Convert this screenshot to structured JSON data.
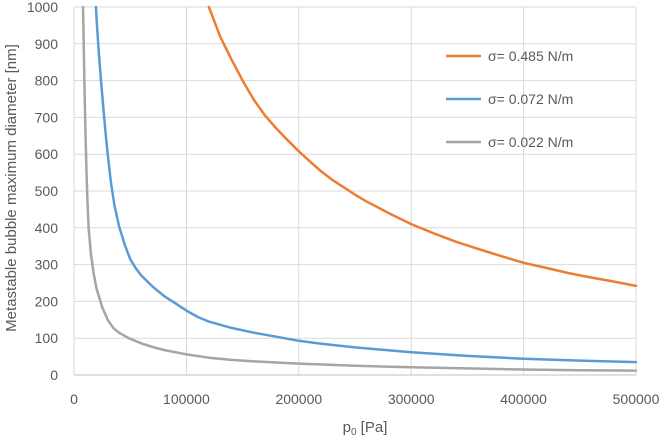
{
  "chart_data": {
    "type": "line",
    "title": "",
    "xlabel": "p₀ [Pa]",
    "ylabel": "Metastable bubble maximum diameter  [nm]",
    "xlim": [
      0,
      500000
    ],
    "ylim": [
      0,
      1000
    ],
    "xticks": [
      0,
      100000,
      200000,
      300000,
      400000,
      500000
    ],
    "yticks": [
      0,
      100,
      200,
      300,
      400,
      500,
      600,
      700,
      800,
      900,
      1000
    ],
    "grid": true,
    "legend_position": "top-right",
    "series": [
      {
        "name": "σ= 0.485 N/m",
        "color": "#ED7D31",
        "points": [
          [
            120000,
            1000
          ],
          [
            125000,
            960
          ],
          [
            130000,
            920
          ],
          [
            140000,
            858
          ],
          [
            150000,
            800
          ],
          [
            160000,
            748
          ],
          [
            170000,
            705
          ],
          [
            180000,
            670
          ],
          [
            190000,
            638
          ],
          [
            200000,
            608
          ],
          [
            210000,
            580
          ],
          [
            220000,
            553
          ],
          [
            230000,
            530
          ],
          [
            240000,
            510
          ],
          [
            250000,
            490
          ],
          [
            260000,
            472
          ],
          [
            270000,
            456
          ],
          [
            280000,
            440
          ],
          [
            290000,
            425
          ],
          [
            300000,
            410
          ],
          [
            320000,
            385
          ],
          [
            340000,
            362
          ],
          [
            360000,
            342
          ],
          [
            380000,
            323
          ],
          [
            400000,
            305
          ],
          [
            420000,
            291
          ],
          [
            440000,
            277
          ],
          [
            460000,
            265
          ],
          [
            480000,
            254
          ],
          [
            500000,
            242
          ]
        ]
      },
      {
        "name": "σ= 0.072 N/m",
        "color": "#5B9BD5",
        "points": [
          [
            19500,
            1000
          ],
          [
            20500,
            950
          ],
          [
            22000,
            880
          ],
          [
            24000,
            800
          ],
          [
            26000,
            730
          ],
          [
            28000,
            660
          ],
          [
            30000,
            600
          ],
          [
            33000,
            520
          ],
          [
            36000,
            460
          ],
          [
            40000,
            405
          ],
          [
            45000,
            355
          ],
          [
            50000,
            315
          ],
          [
            55000,
            290
          ],
          [
            60000,
            270
          ],
          [
            70000,
            240
          ],
          [
            80000,
            215
          ],
          [
            90000,
            195
          ],
          [
            100000,
            175
          ],
          [
            110000,
            158
          ],
          [
            120000,
            145
          ],
          [
            140000,
            128
          ],
          [
            160000,
            115
          ],
          [
            180000,
            104
          ],
          [
            200000,
            93
          ],
          [
            220000,
            85
          ],
          [
            250000,
            75
          ],
          [
            300000,
            62
          ],
          [
            350000,
            52
          ],
          [
            400000,
            44
          ],
          [
            450000,
            39
          ],
          [
            500000,
            35
          ]
        ]
      },
      {
        "name": "σ= 0.022 N/m",
        "color": "#A5A5A5",
        "points": [
          [
            8000,
            1000
          ],
          [
            8500,
            920
          ],
          [
            9000,
            840
          ],
          [
            9500,
            760
          ],
          [
            10000,
            690
          ],
          [
            11000,
            560
          ],
          [
            12000,
            470
          ],
          [
            13000,
            400
          ],
          [
            15000,
            330
          ],
          [
            17500,
            275
          ],
          [
            20000,
            235
          ],
          [
            25000,
            185
          ],
          [
            30000,
            150
          ],
          [
            35000,
            128
          ],
          [
            40000,
            115
          ],
          [
            50000,
            98
          ],
          [
            60000,
            86
          ],
          [
            70000,
            76
          ],
          [
            80000,
            68
          ],
          [
            90000,
            62
          ],
          [
            100000,
            56
          ],
          [
            120000,
            47
          ],
          [
            140000,
            41
          ],
          [
            160000,
            37
          ],
          [
            180000,
            34
          ],
          [
            200000,
            31
          ],
          [
            250000,
            25
          ],
          [
            300000,
            21
          ],
          [
            350000,
            18
          ],
          [
            400000,
            15
          ],
          [
            450000,
            13
          ],
          [
            500000,
            12
          ]
        ]
      }
    ]
  }
}
